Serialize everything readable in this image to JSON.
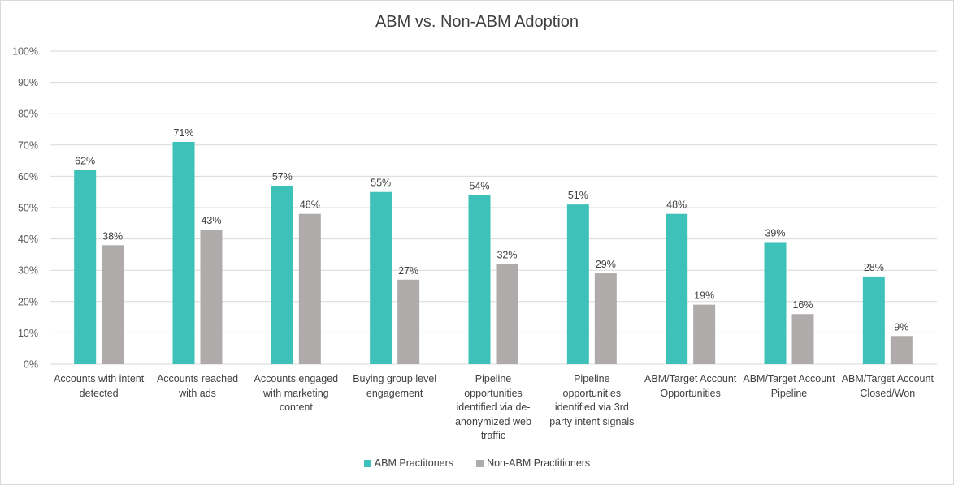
{
  "chart_data": {
    "type": "bar",
    "title": "ABM vs. Non-ABM Adoption",
    "xlabel": "",
    "ylabel": "",
    "ylim": [
      0,
      100
    ],
    "yticks": [
      "0%",
      "10%",
      "20%",
      "30%",
      "40%",
      "50%",
      "60%",
      "70%",
      "80%",
      "90%",
      "100%"
    ],
    "grid": true,
    "legend_position": "bottom",
    "categories": [
      "Accounts with intent detected",
      "Accounts reached with ads",
      "Accounts engaged with marketing content",
      "Buying group level engagement",
      "Pipeline opportunities identified via de-anonymized web traffic",
      "Pipeline opportunities identified via 3rd party intent signals",
      "ABM/Target Account Opportunities",
      "ABM/Target Account Pipeline",
      "ABM/Target Account Closed/Won"
    ],
    "series": [
      {
        "name": "ABM Practitoners",
        "color": "#3ec1b8",
        "values": [
          62,
          71,
          57,
          55,
          54,
          51,
          48,
          39,
          28
        ]
      },
      {
        "name": "Non-ABM Practitioners",
        "color": "#afabab",
        "values": [
          38,
          43,
          48,
          27,
          32,
          29,
          19,
          16,
          9
        ]
      }
    ],
    "value_suffix": "%"
  }
}
